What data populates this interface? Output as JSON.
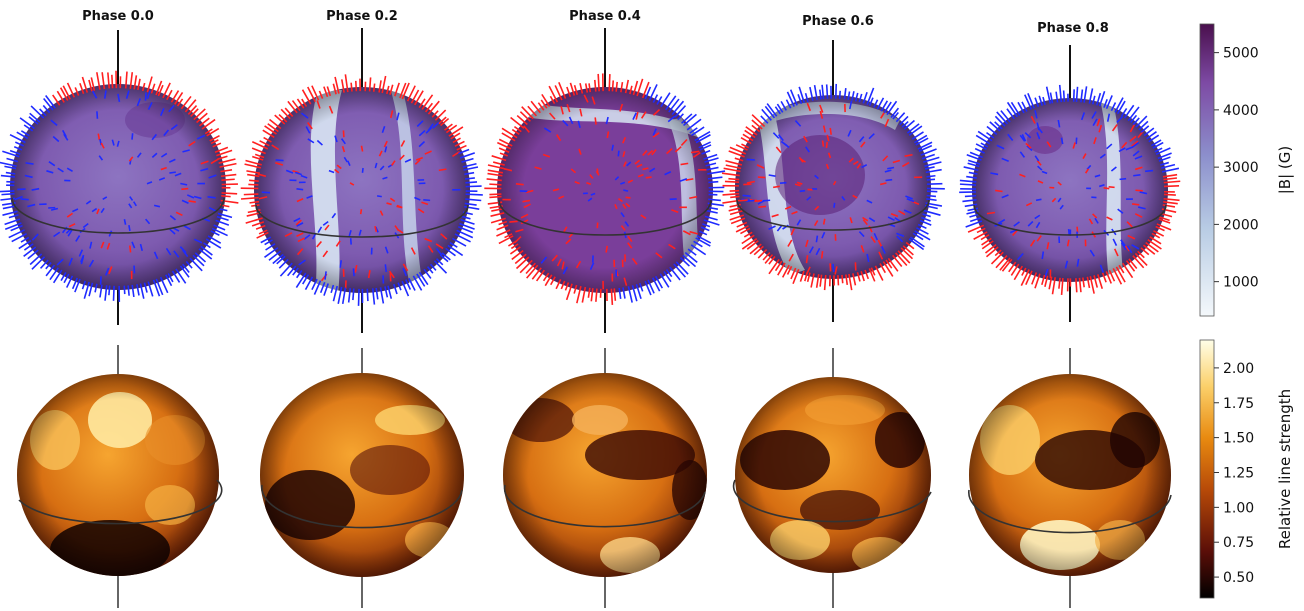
{
  "phases": [
    {
      "label": "Phase 0.0"
    },
    {
      "label": "Phase 0.2"
    },
    {
      "label": "Phase 0.4"
    },
    {
      "label": "Phase 0.6"
    },
    {
      "label": "Phase 0.8"
    }
  ],
  "colorbars": {
    "field": {
      "label": "|B| (G)",
      "ticks": [
        "1000",
        "2000",
        "3000",
        "4000",
        "5000"
      ],
      "range": [
        400,
        5500
      ],
      "colors": [
        "#f4f8fb",
        "#b8cce4",
        "#8c8fcc",
        "#7d4aa4",
        "#4a0f4d"
      ]
    },
    "line_strength": {
      "label": "Relative line strength",
      "ticks": [
        "0.50",
        "0.75",
        "1.00",
        "1.25",
        "1.50",
        "1.75",
        "2.00"
      ],
      "range": [
        0.35,
        2.2
      ],
      "colors": [
        "#000000",
        "#5a0e08",
        "#b74a08",
        "#e88a10",
        "#fbd06a",
        "#ffffe8"
      ]
    }
  },
  "vector_colors": {
    "positive": "#ff2020",
    "negative": "#1f2bff"
  }
}
